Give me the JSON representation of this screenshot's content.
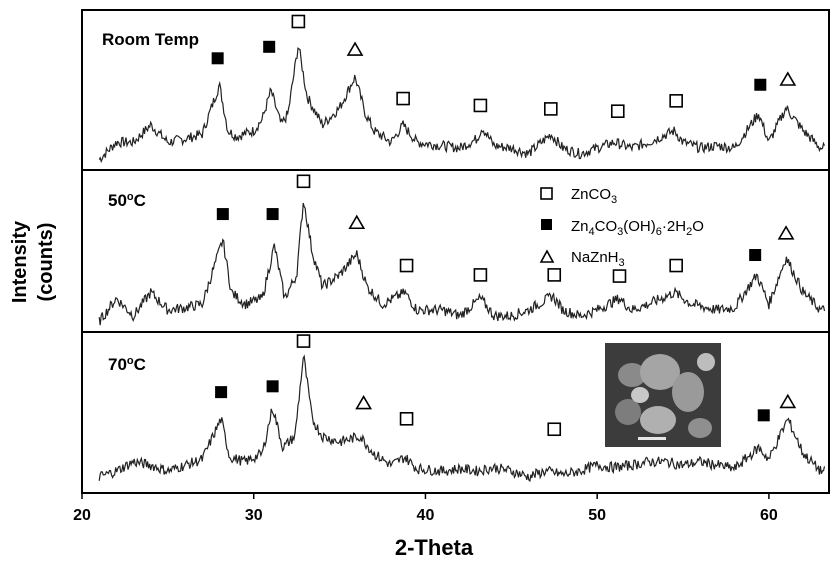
{
  "chart_data": {
    "type": "line",
    "xlabel": "2-Theta",
    "ylabel_line1": "Intensity",
    "ylabel_line2": "(counts)",
    "xlim": [
      20,
      63.5
    ],
    "xticks": [
      20,
      30,
      40,
      50,
      60
    ],
    "legend": {
      "placement": "center-right of middle panel",
      "entries": [
        {
          "marker": "open-square",
          "label": "ZnCO",
          "sub": "3",
          "tail": ""
        },
        {
          "marker": "filled-square",
          "label": "Zn",
          "sub": "4",
          "rest": "CO",
          "sub2": "3",
          "rest2": "(OH)",
          "sub3": "6",
          "rest3": "·2H",
          "sub4": "2",
          "rest4": "O"
        },
        {
          "marker": "open-triangle",
          "label": "NaZnH",
          "sub": "3",
          "tail": ""
        }
      ]
    },
    "panels": [
      {
        "label": "Room Temp",
        "series_points": [
          [
            21,
            -0.1
          ],
          [
            22,
            0.05
          ],
          [
            23,
            0.05
          ],
          [
            24,
            0.2
          ],
          [
            25,
            0.05
          ],
          [
            26,
            0.08
          ],
          [
            27,
            0.12
          ],
          [
            28,
            0.55
          ],
          [
            28.5,
            0.15
          ],
          [
            29,
            0.1
          ],
          [
            30,
            0.15
          ],
          [
            30.5,
            0.25
          ],
          [
            31,
            0.5
          ],
          [
            31.6,
            0.2
          ],
          [
            32,
            0.3
          ],
          [
            32.6,
            0.9
          ],
          [
            33.1,
            0.45
          ],
          [
            34,
            0.2
          ],
          [
            35,
            0.35
          ],
          [
            35.9,
            0.62
          ],
          [
            36.5,
            0.3
          ],
          [
            37,
            0.15
          ],
          [
            38,
            0.05
          ],
          [
            38.7,
            0.2
          ],
          [
            39.5,
            0.05
          ],
          [
            41,
            0.02
          ],
          [
            42,
            0.0
          ],
          [
            43,
            0.08
          ],
          [
            43.3,
            0.18
          ],
          [
            44,
            0.02
          ],
          [
            45,
            0.0
          ],
          [
            46,
            -0.05
          ],
          [
            47.3,
            0.12
          ],
          [
            48,
            0.0
          ],
          [
            49,
            -0.05
          ],
          [
            50,
            0.0
          ],
          [
            51,
            0.05
          ],
          [
            52,
            0.0
          ],
          [
            53,
            0.05
          ],
          [
            54.5,
            0.15
          ],
          [
            55,
            0.05
          ],
          [
            56,
            0.0
          ],
          [
            57,
            0.02
          ],
          [
            58,
            0.0
          ],
          [
            59.4,
            0.3
          ],
          [
            60,
            0.05
          ],
          [
            61,
            0.35
          ],
          [
            62,
            0.15
          ],
          [
            63,
            0.0
          ]
        ],
        "markers": [
          {
            "x": 27.9,
            "type": "filled-square",
            "y": 0.78
          },
          {
            "x": 30.9,
            "type": "filled-square",
            "y": 0.88
          },
          {
            "x": 32.6,
            "type": "open-square",
            "y": 1.1
          },
          {
            "x": 35.9,
            "type": "open-triangle",
            "y": 0.86
          },
          {
            "x": 38.7,
            "type": "open-square",
            "y": 0.43
          },
          {
            "x": 43.2,
            "type": "open-square",
            "y": 0.37
          },
          {
            "x": 47.3,
            "type": "open-square",
            "y": 0.34
          },
          {
            "x": 51.2,
            "type": "open-square",
            "y": 0.32
          },
          {
            "x": 54.6,
            "type": "open-square",
            "y": 0.41
          },
          {
            "x": 59.5,
            "type": "filled-square",
            "y": 0.55
          },
          {
            "x": 61.1,
            "type": "open-triangle",
            "y": 0.6
          }
        ]
      },
      {
        "label": "50",
        "label_sup": "o",
        "label_tail": "C",
        "series_points": [
          [
            21,
            -0.1
          ],
          [
            22,
            0.1
          ],
          [
            23,
            -0.05
          ],
          [
            24,
            0.15
          ],
          [
            25,
            0.0
          ],
          [
            26,
            0.02
          ],
          [
            27,
            0.05
          ],
          [
            28.2,
            0.6
          ],
          [
            28.7,
            0.15
          ],
          [
            29.5,
            0.05
          ],
          [
            30.5,
            0.1
          ],
          [
            31.2,
            0.55
          ],
          [
            31.8,
            0.1
          ],
          [
            32.5,
            0.3
          ],
          [
            32.9,
            0.95
          ],
          [
            33.4,
            0.5
          ],
          [
            34,
            0.2
          ],
          [
            35,
            0.3
          ],
          [
            36.0,
            0.48
          ],
          [
            36.6,
            0.2
          ],
          [
            37.5,
            0.05
          ],
          [
            38.8,
            0.15
          ],
          [
            39.5,
            0.0
          ],
          [
            41,
            0.0
          ],
          [
            42,
            -0.05
          ],
          [
            43.2,
            0.1
          ],
          [
            44,
            -0.05
          ],
          [
            45,
            -0.05
          ],
          [
            46,
            0.0
          ],
          [
            47.4,
            0.12
          ],
          [
            48,
            0.0
          ],
          [
            49,
            -0.05
          ],
          [
            50,
            0.0
          ],
          [
            51.3,
            0.1
          ],
          [
            52,
            0.0
          ],
          [
            53,
            0.05
          ],
          [
            54.5,
            0.15
          ],
          [
            55.5,
            0.05
          ],
          [
            57,
            0.0
          ],
          [
            58,
            0.02
          ],
          [
            59.3,
            0.3
          ],
          [
            60,
            0.05
          ],
          [
            61.0,
            0.45
          ],
          [
            62,
            0.15
          ],
          [
            63,
            0.0
          ]
        ],
        "markers": [
          {
            "x": 28.2,
            "type": "filled-square",
            "y": 0.82
          },
          {
            "x": 31.1,
            "type": "filled-square",
            "y": 0.82
          },
          {
            "x": 32.9,
            "type": "open-square",
            "y": 1.1
          },
          {
            "x": 36.0,
            "type": "open-triangle",
            "y": 0.75
          },
          {
            "x": 38.9,
            "type": "open-square",
            "y": 0.38
          },
          {
            "x": 43.2,
            "type": "open-square",
            "y": 0.3
          },
          {
            "x": 47.5,
            "type": "open-square",
            "y": 0.3
          },
          {
            "x": 51.3,
            "type": "open-square",
            "y": 0.29
          },
          {
            "x": 54.6,
            "type": "open-square",
            "y": 0.38
          },
          {
            "x": 59.2,
            "type": "filled-square",
            "y": 0.47
          },
          {
            "x": 61.0,
            "type": "open-triangle",
            "y": 0.66
          }
        ]
      },
      {
        "label": "70",
        "label_sup": "o",
        "label_tail": "C",
        "series_points": [
          [
            21,
            -0.05
          ],
          [
            22,
            0.0
          ],
          [
            23,
            0.08
          ],
          [
            24,
            0.05
          ],
          [
            25,
            0.0
          ],
          [
            26,
            0.05
          ],
          [
            27,
            0.1
          ],
          [
            28.1,
            0.45
          ],
          [
            28.6,
            0.12
          ],
          [
            29.5,
            0.08
          ],
          [
            30.5,
            0.15
          ],
          [
            31.1,
            0.55
          ],
          [
            31.7,
            0.2
          ],
          [
            32.4,
            0.3
          ],
          [
            32.9,
            1.0
          ],
          [
            33.4,
            0.45
          ],
          [
            34,
            0.3
          ],
          [
            35,
            0.25
          ],
          [
            36.2,
            0.3
          ],
          [
            37,
            0.15
          ],
          [
            38,
            0.05
          ],
          [
            38.8,
            0.12
          ],
          [
            39.5,
            0.02
          ],
          [
            41,
            0.0
          ],
          [
            42,
            0.02
          ],
          [
            43,
            0.0
          ],
          [
            44,
            0.03
          ],
          [
            45,
            0.0
          ],
          [
            46,
            -0.05
          ],
          [
            47,
            0.0
          ],
          [
            48,
            -0.03
          ],
          [
            49,
            0.0
          ],
          [
            50,
            0.05
          ],
          [
            51,
            0.03
          ],
          [
            52,
            0.05
          ],
          [
            53,
            0.08
          ],
          [
            54,
            0.08
          ],
          [
            55,
            0.05
          ],
          [
            56,
            0.08
          ],
          [
            57,
            0.05
          ],
          [
            58,
            0.02
          ],
          [
            59.4,
            0.2
          ],
          [
            60,
            0.1
          ],
          [
            61.1,
            0.45
          ],
          [
            62,
            0.15
          ],
          [
            63,
            0.0
          ]
        ],
        "markers": [
          {
            "x": 28.1,
            "type": "filled-square",
            "y": 0.68
          },
          {
            "x": 31.1,
            "type": "filled-square",
            "y": 0.73
          },
          {
            "x": 32.9,
            "type": "open-square",
            "y": 1.12
          },
          {
            "x": 36.4,
            "type": "open-triangle",
            "y": 0.59
          },
          {
            "x": 38.9,
            "type": "open-square",
            "y": 0.45
          },
          {
            "x": 47.5,
            "type": "open-square",
            "y": 0.36
          },
          {
            "x": 59.7,
            "type": "filled-square",
            "y": 0.48
          },
          {
            "x": 61.1,
            "type": "open-triangle",
            "y": 0.6
          }
        ]
      }
    ]
  },
  "colors": {
    "line": "#222222",
    "frame": "#000000",
    "marker_fill": "#000000",
    "marker_open": "#ffffff",
    "inset_bg": "#3c3c3c"
  },
  "inset_image": "SEM micrograph inset (70 °C panel)"
}
